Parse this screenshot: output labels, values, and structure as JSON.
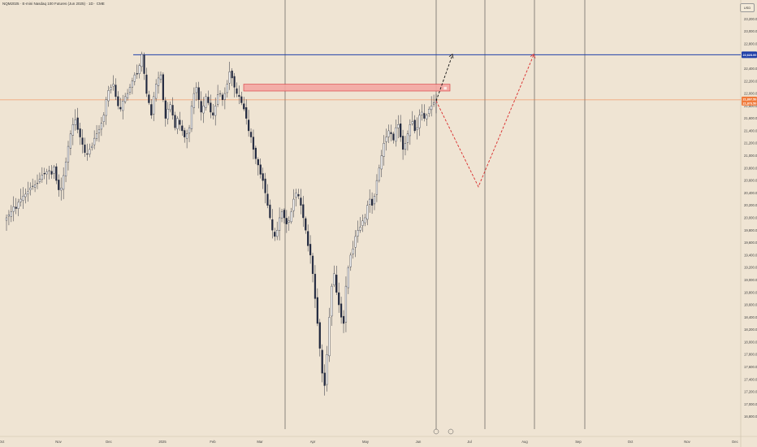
{
  "header": {
    "title": "NQM2025 · E-mini Nasdaq 100 Futures (Jun 2025) · 1D · CME"
  },
  "currency": "USD",
  "colors": {
    "background": "#efe4d3",
    "candle_up": "#ffffff",
    "candle_down": "#1f2741",
    "wick": "#2b2f3d",
    "resistance_line": "#1f3fa8",
    "current_price_line": "#f07a3a",
    "supply_zone_fill": "#f3a6a2",
    "supply_zone_border": "#d9343a",
    "projection_red": "#d92b2b",
    "projection_black": "#111111",
    "vertical_lines": "#444444"
  },
  "chart_data": {
    "type": "candlestick",
    "title": "NQM2025 · E-mini Nasdaq 100 Futures (Jun 2025) · 1D · CME",
    "ylim": [
      16600,
      23400
    ],
    "y_ticks": [
      "23,200.00",
      "23,000.00",
      "22,800.00",
      "22,600.00",
      "22,400.00",
      "22,200.00",
      "22,000.00",
      "21,800.00",
      "21,600.00",
      "21,400.00",
      "21,200.00",
      "21,000.00",
      "20,800.00",
      "20,600.00",
      "20,400.00",
      "20,200.00",
      "20,000.00",
      "19,800.00",
      "19,600.00",
      "19,400.00",
      "19,200.00",
      "19,000.00",
      "18,800.00",
      "18,600.00",
      "18,400.00",
      "18,200.00",
      "18,000.00",
      "17,800.00",
      "17,600.00",
      "17,400.00",
      "17,200.00",
      "17,000.00",
      "16,800.00"
    ],
    "x_ticks": [
      "Oct",
      "Nov",
      "Dec",
      "2025",
      "Feb",
      "Mar",
      "Apr",
      "May",
      "Jun",
      "Jul",
      "Aug",
      "Sep",
      "Oct",
      "Nov",
      "Dec"
    ],
    "grid": false,
    "price_labels": {
      "resistance": "22,623.00",
      "current": "21,897.50",
      "current_sub": "21,873.50"
    },
    "closes": [
      20000,
      20050,
      20100,
      20180,
      20150,
      20250,
      20300,
      20350,
      20380,
      20420,
      20480,
      20510,
      20530,
      20560,
      20620,
      20690,
      20710,
      20740,
      20760,
      20700,
      20820,
      20600,
      20450,
      20480,
      20680,
      20900,
      21150,
      21350,
      21500,
      21580,
      21420,
      21300,
      21180,
      21050,
      21020,
      21100,
      21150,
      21280,
      21350,
      21420,
      21520,
      21650,
      21900,
      22050,
      22100,
      22150,
      21950,
      21800,
      21750,
      21880,
      21950,
      22000,
      22100,
      22200,
      22300,
      22320,
      22450,
      22630,
      22320,
      22000,
      21850,
      21650,
      21950,
      22150,
      22250,
      22300,
      21900,
      21600,
      21750,
      21820,
      21650,
      21450,
      21600,
      21500,
      21400,
      21300,
      21350,
      21450,
      21800,
      22000,
      22100,
      21900,
      21700,
      21800,
      21950,
      21850,
      21700,
      21650,
      21800,
      21980,
      22000,
      21900,
      22000,
      22150,
      22350,
      22250,
      22100,
      22000,
      21950,
      21850,
      21750,
      21600,
      21400,
      21300,
      21100,
      20950,
      20850,
      20700,
      20600,
      20400,
      20200,
      20000,
      19800,
      19700,
      19800,
      20000,
      20100,
      20000,
      19900,
      19950,
      20100,
      20300,
      20400,
      20350,
      20200,
      20000,
      19800,
      19550,
      19400,
      19100,
      18700,
      18300,
      17900,
      17500,
      17300,
      17800,
      18400,
      18900,
      19100,
      18800,
      18600,
      18400,
      18300,
      18900,
      19200,
      19400,
      19500,
      19700,
      19800,
      19850,
      19950,
      20000,
      20200,
      20300,
      20200,
      20350,
      20600,
      20800,
      21000,
      21200,
      21300,
      21400,
      21350,
      21250,
      21450,
      21500,
      21300,
      21100,
      21200,
      21350,
      21500,
      21550,
      21400,
      21450,
      21650,
      21700,
      21600,
      21650,
      21750,
      21800,
      21850,
      21900
    ]
  },
  "annotations": {
    "supply_zone": {
      "top": 22150,
      "bottom": 22040,
      "label": "▤"
    },
    "projection_red_path": [
      21880,
      20500,
      22620
    ],
    "projection_black_path": [
      21880,
      22620
    ],
    "bottom_icons": [
      "alert-icon",
      "event-icon"
    ]
  }
}
